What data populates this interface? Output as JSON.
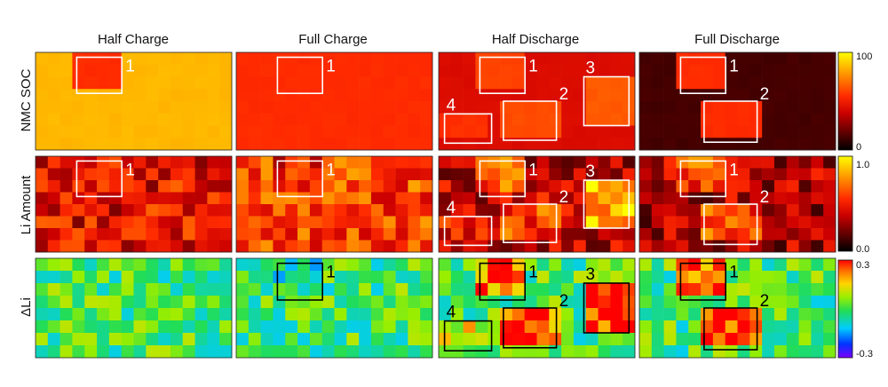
{
  "chart_data": {
    "type": "heatmap",
    "columns": [
      "Half Charge",
      "Full Charge",
      "Half Discharge",
      "Full Discharge"
    ],
    "rows": [
      {
        "label": "NMC SOC",
        "colorbar": {
          "ticks": [
            "100",
            "0"
          ],
          "min": 0,
          "max": 100
        },
        "box_color": "#ffffff"
      },
      {
        "label": "Li Amount",
        "colorbar": {
          "ticks": [
            "1.0",
            "0.0"
          ],
          "min": 0,
          "max": 1
        },
        "box_color": "#ffffff"
      },
      {
        "label": "ΔLi",
        "colorbar": {
          "ticks": [
            "0.3",
            "-0.3"
          ],
          "min": -0.3,
          "max": 0.3
        },
        "box_color": "#000000"
      }
    ],
    "grid": {
      "cols": 16,
      "rows": 8
    },
    "regions": {
      "Half Charge": [
        "1"
      ],
      "Full Charge": [
        "1"
      ],
      "Half Discharge": [
        "1",
        "2",
        "3",
        "4"
      ],
      "Full Discharge": [
        "1",
        "2"
      ]
    },
    "panels": [
      {
        "row": "NMC SOC",
        "column": "Half Charge",
        "background_value": 85,
        "regions": [
          {
            "label": "1",
            "mean_value": 55
          }
        ]
      },
      {
        "row": "NMC SOC",
        "column": "Full Charge",
        "background_value": 55,
        "regions": [
          {
            "label": "1",
            "mean_value": 55
          }
        ]
      },
      {
        "row": "NMC SOC",
        "column": "Half Discharge",
        "background_value": 43,
        "regions": [
          {
            "label": "1",
            "mean_value": 60
          },
          {
            "label": "2",
            "mean_value": 62
          },
          {
            "label": "3",
            "mean_value": 65
          },
          {
            "label": "4",
            "mean_value": 56
          }
        ]
      },
      {
        "row": "NMC SOC",
        "column": "Full Discharge",
        "background_value": 13,
        "regions": [
          {
            "label": "1",
            "mean_value": 55
          },
          {
            "label": "2",
            "mean_value": 55
          }
        ]
      },
      {
        "row": "Li Amount",
        "column": "Half Charge",
        "background_value": 0.45,
        "regions": [
          {
            "label": "1",
            "mean_value": 0.45
          }
        ]
      },
      {
        "row": "Li Amount",
        "column": "Full Charge",
        "background_value": 0.6,
        "regions": [
          {
            "label": "1",
            "mean_value": 0.5
          }
        ]
      },
      {
        "row": "Li Amount",
        "column": "Half Discharge",
        "background_value": 0.38,
        "regions": [
          {
            "label": "1",
            "mean_value": 0.65
          },
          {
            "label": "2",
            "mean_value": 0.6
          },
          {
            "label": "3",
            "mean_value": 0.8
          },
          {
            "label": "4",
            "mean_value": 0.5
          }
        ]
      },
      {
        "row": "Li Amount",
        "column": "Full Discharge",
        "background_value": 0.33,
        "regions": [
          {
            "label": "1",
            "mean_value": 0.6
          },
          {
            "label": "2",
            "mean_value": 0.6
          }
        ]
      },
      {
        "row": "ΔLi",
        "column": "Half Charge",
        "background_value": 0.0,
        "regions": []
      },
      {
        "row": "ΔLi",
        "column": "Full Charge",
        "background_value": 0.0,
        "regions": [
          {
            "label": "1",
            "mean_value": -0.05
          }
        ]
      },
      {
        "row": "ΔLi",
        "column": "Half Discharge",
        "background_value": 0.0,
        "regions": [
          {
            "label": "1",
            "mean_value": 0.22
          },
          {
            "label": "2",
            "mean_value": 0.25
          },
          {
            "label": "3",
            "mean_value": 0.28
          },
          {
            "label": "4",
            "mean_value": 0.1
          }
        ]
      },
      {
        "row": "ΔLi",
        "column": "Full Discharge",
        "background_value": 0.0,
        "regions": [
          {
            "label": "1",
            "mean_value": 0.25
          },
          {
            "label": "2",
            "mean_value": 0.28
          }
        ]
      }
    ]
  }
}
